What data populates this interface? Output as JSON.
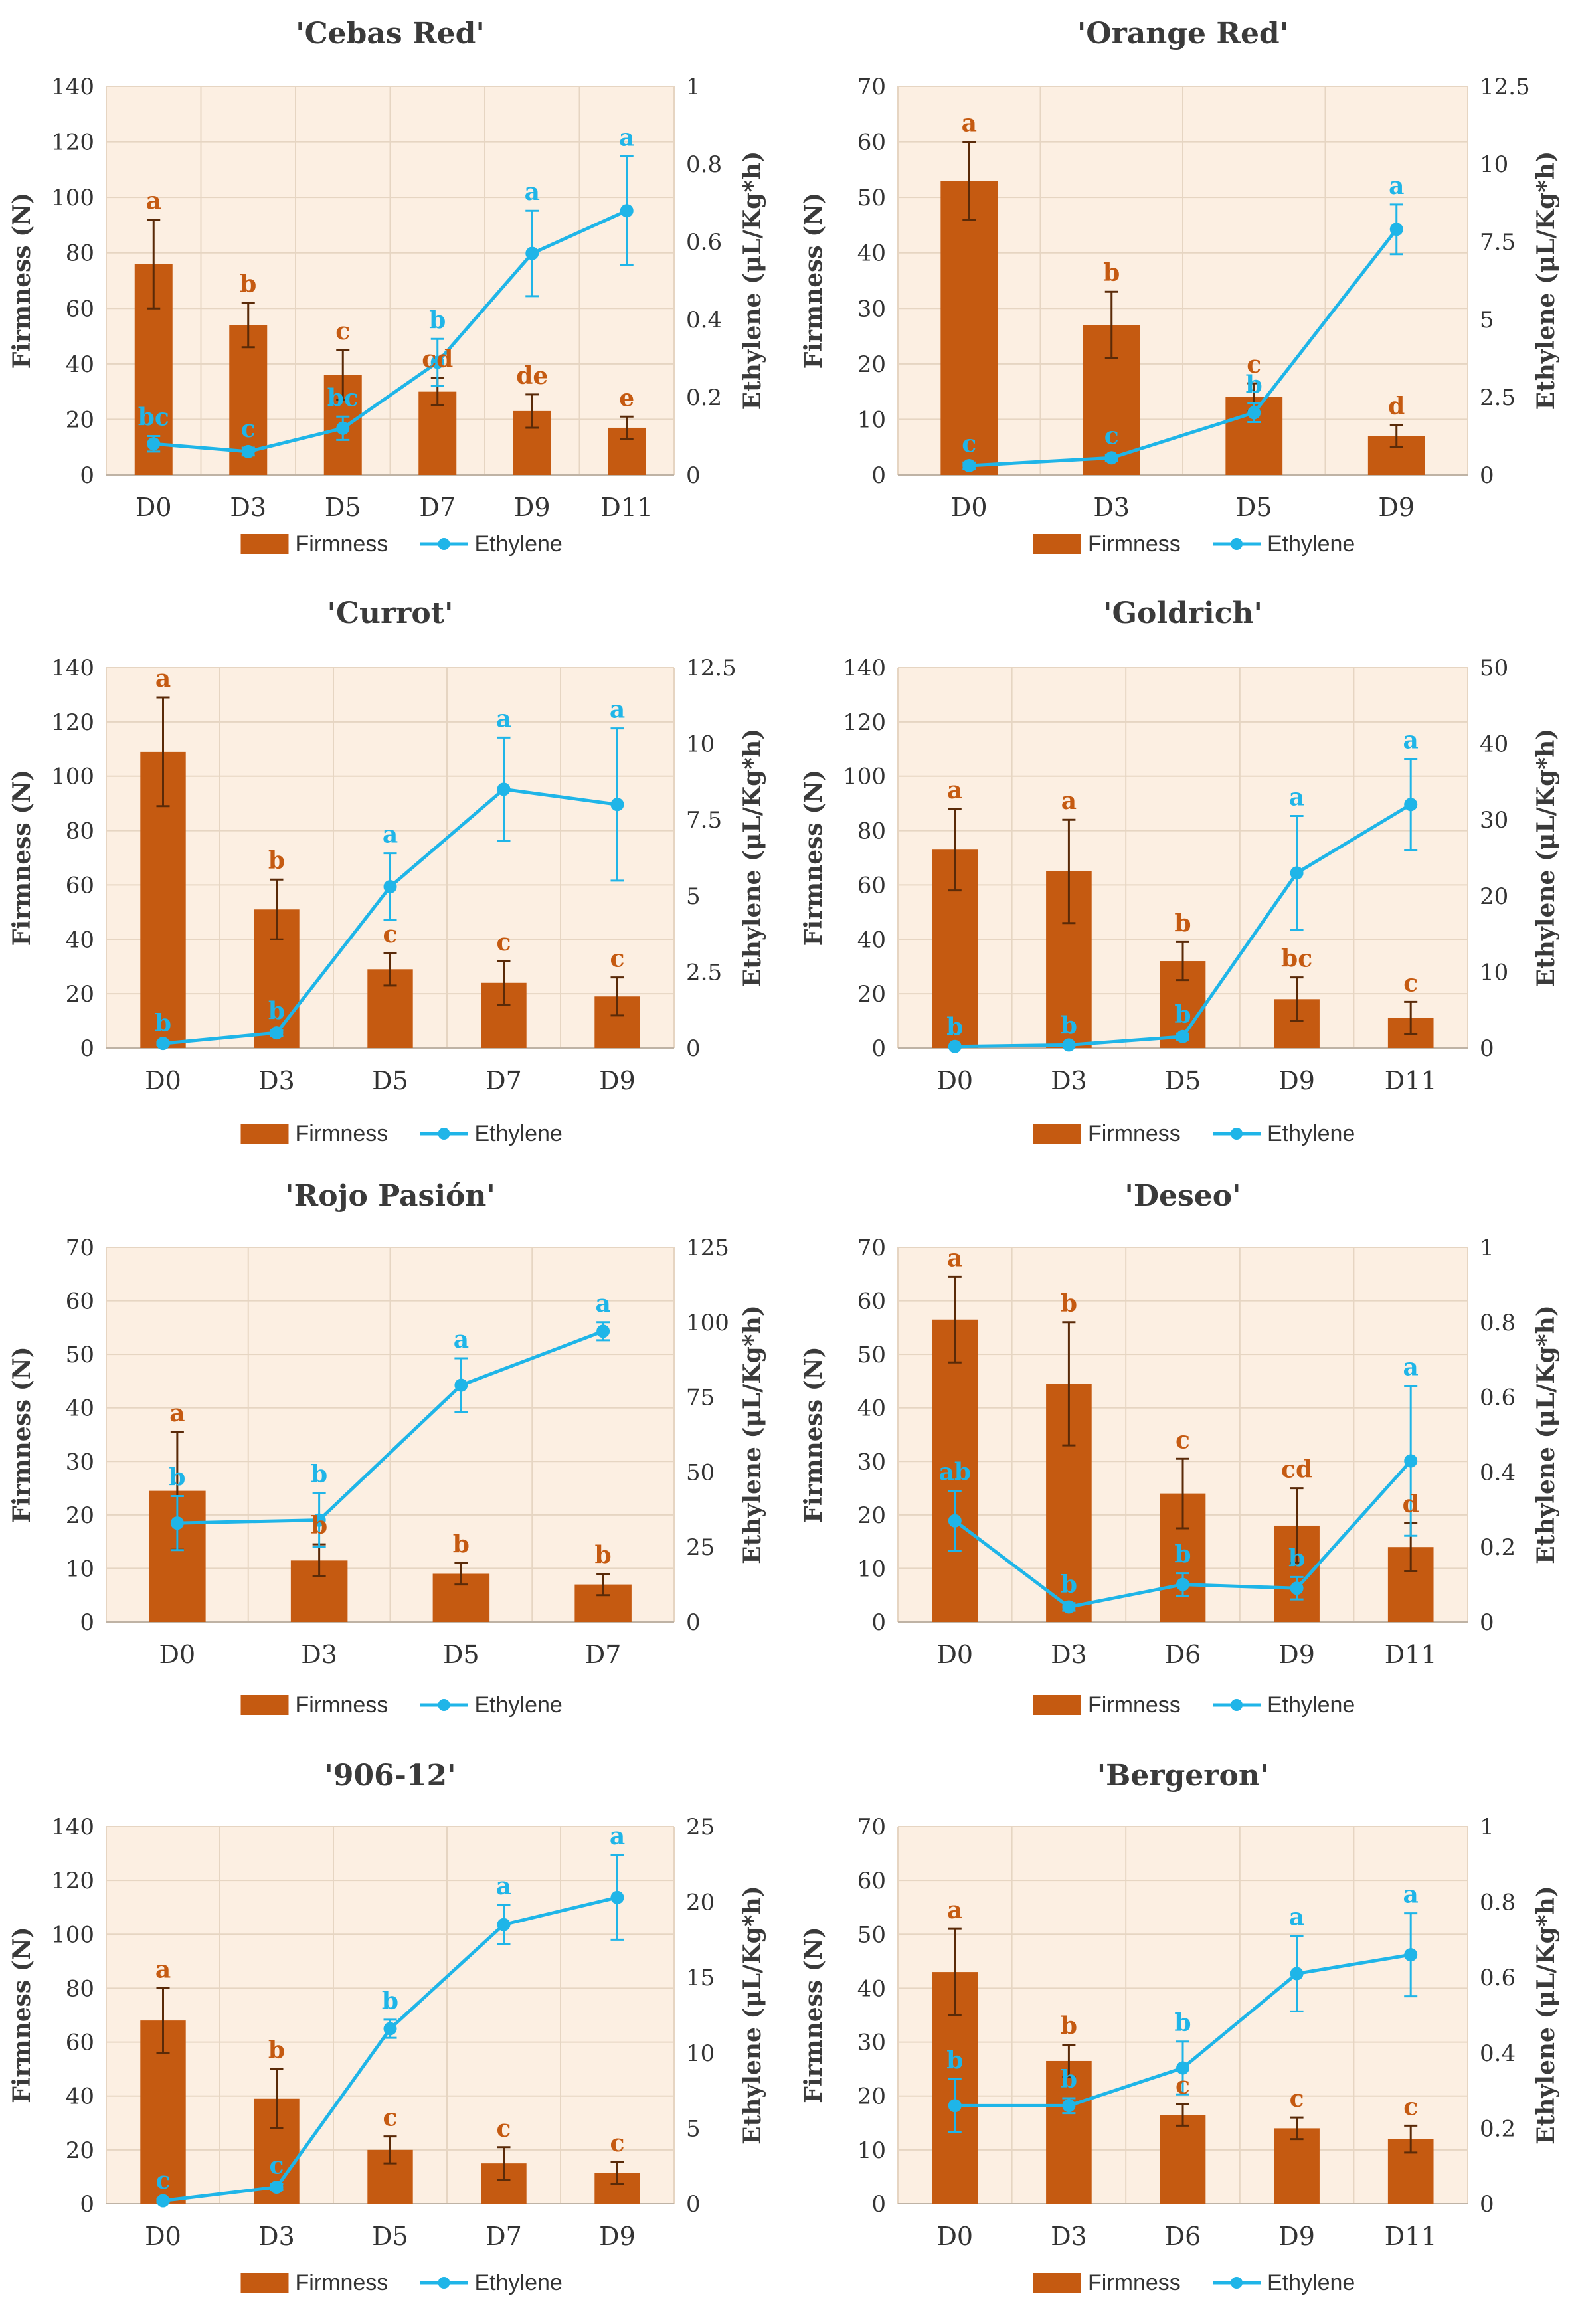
{
  "legend": {
    "firmness_label": "Firmness",
    "ethylene_label": "Ethylene"
  },
  "axes": {
    "left_label": "Firmness (N)",
    "right_label": "Ethylene (μL/Kg*h)"
  },
  "colors": {
    "bar": "#C55A11",
    "line": "#1FB5E8",
    "plot_bg": "#FCEFE2",
    "grid": "#E6D5C2",
    "bar_label": "#C55A11",
    "line_label": "#1FB5E8"
  },
  "chart_data": [
    {
      "type": "bar+line",
      "title": "'Cebas Red'",
      "categories": [
        "D0",
        "D3",
        "D5",
        "D7",
        "D9",
        "D11"
      ],
      "y1_lim": [
        0,
        140
      ],
      "y1_ticks": [
        0,
        20,
        40,
        60,
        80,
        100,
        120,
        140
      ],
      "y2_lim": [
        0,
        1
      ],
      "y2_ticks": [
        "0",
        "0.2",
        "0.4",
        "0.6",
        "0.8",
        "1"
      ],
      "series": [
        {
          "name": "Firmness",
          "values": [
            76,
            54,
            36,
            30,
            23,
            17
          ],
          "errors": [
            16,
            8,
            9,
            5,
            6,
            4
          ],
          "labels": [
            "a",
            "b",
            "c",
            "cd",
            "de",
            "e"
          ]
        },
        {
          "name": "Ethylene",
          "values": [
            0.08,
            0.06,
            0.12,
            0.29,
            0.57,
            0.68
          ],
          "errors": [
            0.02,
            0.01,
            0.03,
            0.06,
            0.11,
            0.14
          ],
          "labels": [
            "bc",
            "c",
            "bc",
            "b",
            "a",
            "a"
          ]
        }
      ]
    },
    {
      "type": "bar+line",
      "title": "'Orange Red'",
      "categories": [
        "D0",
        "D3",
        "D5",
        "D9"
      ],
      "y1_lim": [
        0,
        70
      ],
      "y1_ticks": [
        0,
        10,
        20,
        30,
        40,
        50,
        60,
        70
      ],
      "y2_lim": [
        0,
        12.5
      ],
      "y2_ticks": [
        "0",
        "2.5",
        "5",
        "7.5",
        "10",
        "12.5"
      ],
      "series": [
        {
          "name": "Firmness",
          "values": [
            53,
            27,
            14,
            7
          ],
          "errors": [
            7,
            6,
            2.5,
            2
          ],
          "labels": [
            "a",
            "b",
            "c",
            "d"
          ]
        },
        {
          "name": "Ethylene",
          "values": [
            0.3,
            0.55,
            2.0,
            7.9
          ],
          "errors": [
            0.1,
            0.1,
            0.3,
            0.8
          ],
          "labels": [
            "c",
            "c",
            "b",
            "a"
          ]
        }
      ]
    },
    {
      "type": "bar+line",
      "title": "'Currot'",
      "categories": [
        "D0",
        "D3",
        "D5",
        "D7",
        "D9"
      ],
      "y1_lim": [
        0,
        140
      ],
      "y1_ticks": [
        0,
        20,
        40,
        60,
        80,
        100,
        120,
        140
      ],
      "y2_lim": [
        0,
        12.5
      ],
      "y2_ticks": [
        "0",
        "2.5",
        "5",
        "7.5",
        "10",
        "12.5"
      ],
      "series": [
        {
          "name": "Firmness",
          "values": [
            109,
            51,
            29,
            24,
            19
          ],
          "errors": [
            20,
            11,
            6,
            8,
            7
          ],
          "labels": [
            "a",
            "b",
            "c",
            "c",
            "c"
          ]
        },
        {
          "name": "Ethylene",
          "values": [
            0.15,
            0.5,
            5.3,
            8.5,
            8.0
          ],
          "errors": [
            0.05,
            0.1,
            1.1,
            1.7,
            2.5
          ],
          "labels": [
            "b",
            "b",
            "a",
            "a",
            "a"
          ]
        }
      ]
    },
    {
      "type": "bar+line",
      "title": "'Goldrich'",
      "categories": [
        "D0",
        "D3",
        "D5",
        "D9",
        "D11"
      ],
      "y1_lim": [
        0,
        140
      ],
      "y1_ticks": [
        0,
        20,
        40,
        60,
        80,
        100,
        120,
        140
      ],
      "y2_lim": [
        0,
        50
      ],
      "y2_ticks": [
        "0",
        "10",
        "20",
        "30",
        "40",
        "50"
      ],
      "series": [
        {
          "name": "Firmness",
          "values": [
            73,
            65,
            32,
            18,
            11
          ],
          "errors": [
            15,
            19,
            7,
            8,
            6
          ],
          "labels": [
            "a",
            "a",
            "b",
            "bc",
            "c"
          ]
        },
        {
          "name": "Ethylene",
          "values": [
            0.2,
            0.4,
            1.5,
            23,
            32
          ],
          "errors": [
            0.1,
            0.1,
            0.4,
            7.5,
            6
          ],
          "labels": [
            "b",
            "b",
            "b",
            "a",
            "a"
          ]
        }
      ]
    },
    {
      "type": "bar+line",
      "title": "'Rojo Pasión'",
      "categories": [
        "D0",
        "D3",
        "D5",
        "D7"
      ],
      "y1_lim": [
        0,
        70
      ],
      "y1_ticks": [
        0,
        10,
        20,
        30,
        40,
        50,
        60,
        70
      ],
      "y2_lim": [
        0,
        125
      ],
      "y2_ticks": [
        "0",
        "25",
        "50",
        "75",
        "100",
        "125"
      ],
      "series": [
        {
          "name": "Firmness",
          "values": [
            24.5,
            11.5,
            9,
            7
          ],
          "errors": [
            11,
            3,
            2,
            2
          ],
          "labels": [
            "a",
            "b",
            "b",
            "b"
          ]
        },
        {
          "name": "Ethylene",
          "values": [
            33,
            34,
            79,
            97
          ],
          "errors": [
            9,
            9,
            9,
            3
          ],
          "labels": [
            "b",
            "b",
            "a",
            "a"
          ]
        }
      ]
    },
    {
      "type": "bar+line",
      "title": "'Deseo'",
      "categories": [
        "D0",
        "D3",
        "D6",
        "D9",
        "D11"
      ],
      "y1_lim": [
        0,
        70
      ],
      "y1_ticks": [
        0,
        10,
        20,
        30,
        40,
        50,
        60,
        70
      ],
      "y2_lim": [
        0,
        1
      ],
      "y2_ticks": [
        "0",
        "0.2",
        "0.4",
        "0.6",
        "0.8",
        "1"
      ],
      "series": [
        {
          "name": "Firmness",
          "values": [
            56.5,
            44.5,
            24,
            18,
            14
          ],
          "errors": [
            8,
            11.5,
            6.5,
            7,
            4.5
          ],
          "labels": [
            "a",
            "b",
            "c",
            "cd",
            "d"
          ]
        },
        {
          "name": "Ethylene",
          "values": [
            0.27,
            0.04,
            0.1,
            0.09,
            0.43
          ],
          "errors": [
            0.08,
            0.01,
            0.03,
            0.03,
            0.2
          ],
          "labels": [
            "ab",
            "b",
            "b",
            "b",
            "a"
          ]
        }
      ]
    },
    {
      "type": "bar+line",
      "title": "'906-12'",
      "categories": [
        "D0",
        "D3",
        "D5",
        "D7",
        "D9"
      ],
      "y1_lim": [
        0,
        140
      ],
      "y1_ticks": [
        0,
        20,
        40,
        60,
        80,
        100,
        120,
        140
      ],
      "y2_lim": [
        0,
        25
      ],
      "y2_ticks": [
        "0",
        "5",
        "10",
        "15",
        "20",
        "25"
      ],
      "series": [
        {
          "name": "Firmness",
          "values": [
            68,
            39,
            20,
            15,
            11.5
          ],
          "errors": [
            12,
            11,
            5,
            6,
            4
          ],
          "labels": [
            "a",
            "b",
            "c",
            "c",
            "c"
          ]
        },
        {
          "name": "Ethylene",
          "values": [
            0.2,
            1.1,
            11.6,
            18.5,
            20.3
          ],
          "errors": [
            0.1,
            0.2,
            0.6,
            1.3,
            2.8
          ],
          "labels": [
            "c",
            "c",
            "b",
            "a",
            "a"
          ]
        }
      ]
    },
    {
      "type": "bar+line",
      "title": "'Bergeron'",
      "categories": [
        "D0",
        "D3",
        "D6",
        "D9",
        "D11"
      ],
      "y1_lim": [
        0,
        70
      ],
      "y1_ticks": [
        0,
        10,
        20,
        30,
        40,
        50,
        60,
        70
      ],
      "y2_lim": [
        0,
        1
      ],
      "y2_ticks": [
        "0",
        "0.2",
        "0.4",
        "0.6",
        "0.8",
        "1"
      ],
      "series": [
        {
          "name": "Firmness",
          "values": [
            43,
            26.5,
            16.5,
            14,
            12
          ],
          "errors": [
            8,
            3,
            2,
            2,
            2.5
          ],
          "labels": [
            "a",
            "b",
            "c",
            "c",
            "c"
          ]
        },
        {
          "name": "Ethylene",
          "values": [
            0.26,
            0.26,
            0.36,
            0.61,
            0.66
          ],
          "errors": [
            0.07,
            0.02,
            0.07,
            0.1,
            0.11
          ],
          "labels": [
            "b",
            "b",
            "b",
            "a",
            "a"
          ]
        }
      ]
    }
  ]
}
